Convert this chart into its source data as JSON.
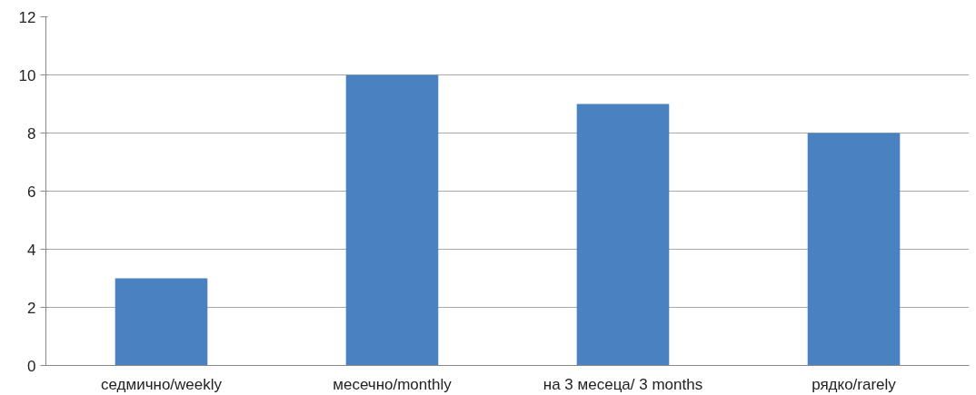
{
  "chart_data": {
    "type": "bar",
    "categories": [
      "седмично/weekly",
      "месечно/monthly",
      "на 3 месеца/ 3 months",
      "рядко/rarely"
    ],
    "values": [
      3,
      10,
      9,
      8
    ],
    "color": "#4a81c0",
    "ylim": [
      0,
      12
    ],
    "yticks": [
      0,
      2,
      4,
      6,
      8,
      10,
      12
    ],
    "grid": "y"
  }
}
